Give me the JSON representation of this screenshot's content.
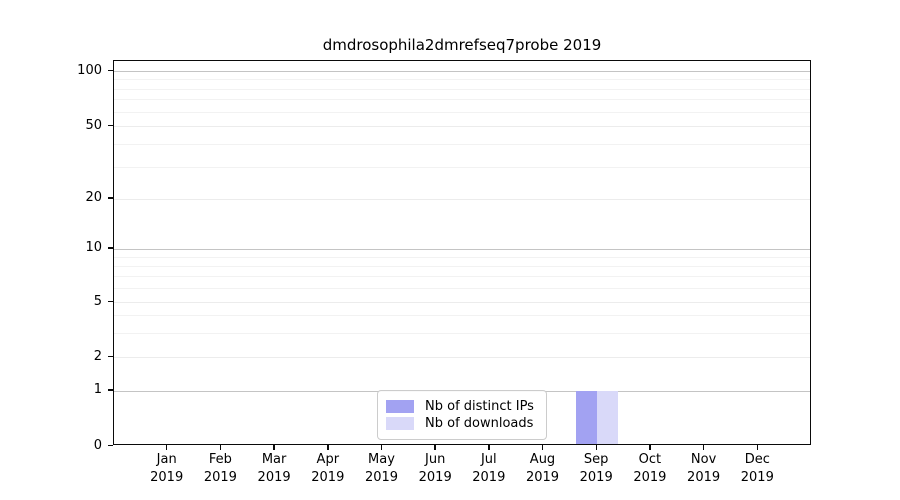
{
  "title": "dmdrosophila2dmrefseq7probe 2019",
  "chart_data": {
    "type": "bar",
    "title": "dmdrosophila2dmrefseq7probe 2019",
    "categories": [
      "Jan",
      "Feb",
      "Mar",
      "Apr",
      "May",
      "Jun",
      "Jul",
      "Aug",
      "Sep",
      "Oct",
      "Nov",
      "Dec"
    ],
    "category_year": "2019",
    "series": [
      {
        "name": "Nb of distinct IPs",
        "color": "#a2a2f2",
        "values": [
          0,
          0,
          0,
          0,
          0,
          0,
          0,
          0,
          1,
          0,
          0,
          0
        ]
      },
      {
        "name": "Nb of downloads",
        "color": "#d9d9f9",
        "values": [
          0,
          0,
          0,
          0,
          0,
          0,
          0,
          0,
          1,
          0,
          0,
          0
        ]
      }
    ],
    "y_axis": {
      "tick_labels": [
        "0",
        "1",
        "2",
        "5",
        "10",
        "20",
        "50",
        "100"
      ],
      "ticks": [
        0,
        1,
        2,
        5,
        10,
        20,
        50,
        100
      ],
      "scale": "log-like",
      "range": [
        0,
        115
      ]
    },
    "x_axis": {
      "label": "",
      "months_shown": 12
    },
    "grid": "horizontal",
    "legend": {
      "position": "inside-bottom-center",
      "labels": [
        "Nb of distinct IPs",
        "Nb of downloads"
      ]
    }
  }
}
